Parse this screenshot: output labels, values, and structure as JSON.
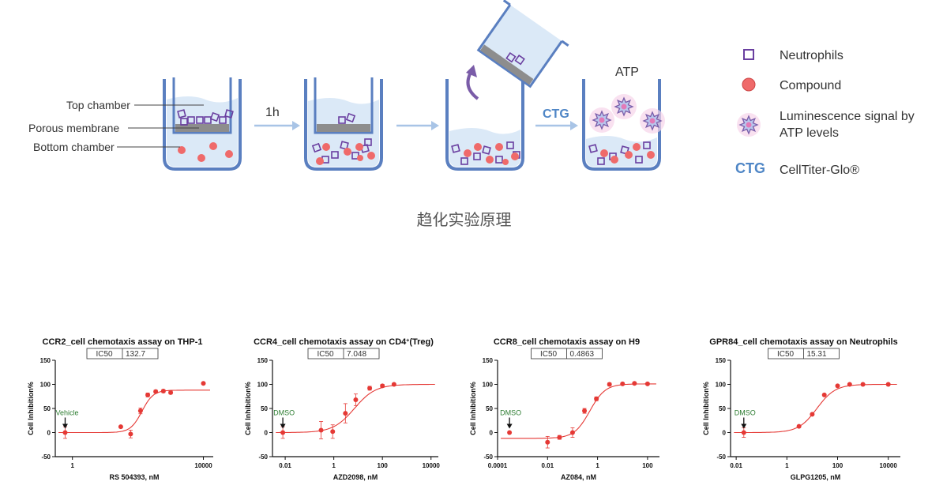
{
  "diagram": {
    "labels": {
      "top_chamber": "Top chamber",
      "porous_membrane": "Porous membrane",
      "bottom_chamber": "Bottom chamber",
      "step_1h": "1h",
      "ctg": "CTG",
      "atp": "ATP"
    },
    "legend": [
      {
        "icon": "square-outline-icon",
        "label": "Neutrophils"
      },
      {
        "icon": "red-circle-icon",
        "label": "Compound"
      },
      {
        "icon": "star-burst-icon",
        "label": "Luminescence signal by ATP levels"
      },
      {
        "icon": "ctg-text-icon",
        "label": "CellTiter-Glo®",
        "code": "CTG"
      }
    ],
    "caption": "趋化实验原理",
    "colors": {
      "well": "#5a7fc0",
      "liquid": "#dbe9f7",
      "membrane": "#8d8d8d",
      "neutrophil": "#6a3fa0",
      "compound": "#ef6a6a",
      "arrow": "#a8c4e6",
      "ctg": "#4f86c6",
      "curve": "#e53935"
    }
  },
  "chart_data": [
    {
      "type": "scatter",
      "title": "CCR2_cell chemotaxis assay on THP-1",
      "ic50_label": "IC50",
      "ic50_value": "132.7",
      "xlabel": "RS 504393, nM",
      "ylabel": "Cell Inhibition%",
      "xscale": "log",
      "xlim": [
        0.3,
        20000
      ],
      "ylim": [
        -50,
        150
      ],
      "xticks": [
        1,
        10000
      ],
      "xtick_labels": [
        "1",
        "10000"
      ],
      "yticks": [
        -50,
        0,
        50,
        100,
        150
      ],
      "annotation": "Vehicle",
      "annotation_x": 0.6,
      "points": [
        {
          "x": 0.6,
          "y": 0,
          "err": 12
        },
        {
          "x": 30,
          "y": 12,
          "err": 0
        },
        {
          "x": 60,
          "y": -3,
          "err": 8
        },
        {
          "x": 120,
          "y": 45,
          "err": 6
        },
        {
          "x": 200,
          "y": 78,
          "err": 4
        },
        {
          "x": 350,
          "y": 85,
          "err": 3
        },
        {
          "x": 600,
          "y": 86,
          "err": 3
        },
        {
          "x": 1000,
          "y": 83,
          "err": 3
        },
        {
          "x": 10000,
          "y": 102,
          "err": 2
        }
      ],
      "fit": {
        "bottom": 0,
        "top": 88,
        "ic50": 132.7,
        "hill": 2.5
      }
    },
    {
      "type": "scatter",
      "title": "CCR4_cell chemotaxis assay on CD4",
      "title_sup": "+",
      "title_end": "(Treg)",
      "ic50_label": "IC50",
      "ic50_value": "7.048",
      "xlabel": "AZD2098, nM",
      "ylabel": "Cell Inhibition%",
      "xscale": "log",
      "xlim": [
        0.003,
        20000
      ],
      "ylim": [
        -50,
        150
      ],
      "xticks": [
        0.01,
        1,
        100,
        10000
      ],
      "xtick_labels": [
        "0.01",
        "1",
        "100",
        "10000"
      ],
      "yticks": [
        -50,
        0,
        50,
        100,
        150
      ],
      "annotation": "DMSO",
      "annotation_x": 0.008,
      "points": [
        {
          "x": 0.008,
          "y": 0,
          "err": 12
        },
        {
          "x": 0.3,
          "y": 5,
          "err": 18
        },
        {
          "x": 0.9,
          "y": 2,
          "err": 14
        },
        {
          "x": 3,
          "y": 40,
          "err": 20
        },
        {
          "x": 8,
          "y": 68,
          "err": 12
        },
        {
          "x": 30,
          "y": 92,
          "err": 4
        },
        {
          "x": 100,
          "y": 97,
          "err": 3
        },
        {
          "x": 300,
          "y": 100,
          "err": 2
        }
      ],
      "fit": {
        "bottom": 0,
        "top": 100,
        "ic50": 7.048,
        "hill": 1.0
      }
    },
    {
      "type": "scatter",
      "title": "CCR8_cell chemotaxis assay on H9",
      "ic50_label": "IC50",
      "ic50_value": "0.4863",
      "xlabel": "AZ084, nM",
      "ylabel": "Cell Inhibition%",
      "xscale": "log",
      "xlim": [
        0.0001,
        300
      ],
      "ylim": [
        -50,
        150
      ],
      "xticks": [
        0.0001,
        0.01,
        1,
        100
      ],
      "xtick_labels": [
        "0.0001",
        "0.01",
        "1",
        "100"
      ],
      "yticks": [
        -50,
        0,
        50,
        100,
        150
      ],
      "annotation": "DMSO",
      "annotation_x": 0.0003,
      "points": [
        {
          "x": 0.0003,
          "y": 0,
          "err": 0
        },
        {
          "x": 0.01,
          "y": -20,
          "err": 12
        },
        {
          "x": 0.03,
          "y": -10,
          "err": 4
        },
        {
          "x": 0.1,
          "y": 0,
          "err": 10
        },
        {
          "x": 0.3,
          "y": 45,
          "err": 5
        },
        {
          "x": 0.9,
          "y": 70,
          "err": 4
        },
        {
          "x": 3,
          "y": 100,
          "err": 3
        },
        {
          "x": 10,
          "y": 101,
          "err": 2
        },
        {
          "x": 30,
          "y": 102,
          "err": 2
        },
        {
          "x": 100,
          "y": 101,
          "err": 2
        }
      ],
      "fit": {
        "bottom": -12,
        "top": 101,
        "ic50": 0.4863,
        "hill": 1.4
      }
    },
    {
      "type": "scatter",
      "title": "GPR84_cell chemotaxis assay on Neutrophils",
      "ic50_label": "IC50",
      "ic50_value": "15.31",
      "xlabel": "GLPG1205, nM",
      "ylabel": "Cell Inhibition%",
      "xscale": "log",
      "xlim": [
        0.006,
        30000
      ],
      "ylim": [
        -50,
        150
      ],
      "xticks": [
        0.01,
        1,
        100,
        10000
      ],
      "xtick_labels": [
        "0.01",
        "1",
        "100",
        "10000"
      ],
      "yticks": [
        -50,
        0,
        50,
        100,
        150
      ],
      "annotation": "DMSO",
      "annotation_x": 0.02,
      "points": [
        {
          "x": 0.02,
          "y": 0,
          "err": 10
        },
        {
          "x": 3,
          "y": 13,
          "err": 0
        },
        {
          "x": 10,
          "y": 38,
          "err": 0
        },
        {
          "x": 30,
          "y": 78,
          "err": 0
        },
        {
          "x": 100,
          "y": 97,
          "err": 0
        },
        {
          "x": 300,
          "y": 100,
          "err": 2
        },
        {
          "x": 1000,
          "y": 100,
          "err": 2
        },
        {
          "x": 10000,
          "y": 100,
          "err": 2
        }
      ],
      "fit": {
        "bottom": 0,
        "top": 100,
        "ic50": 15.31,
        "hill": 1.2
      }
    }
  ]
}
